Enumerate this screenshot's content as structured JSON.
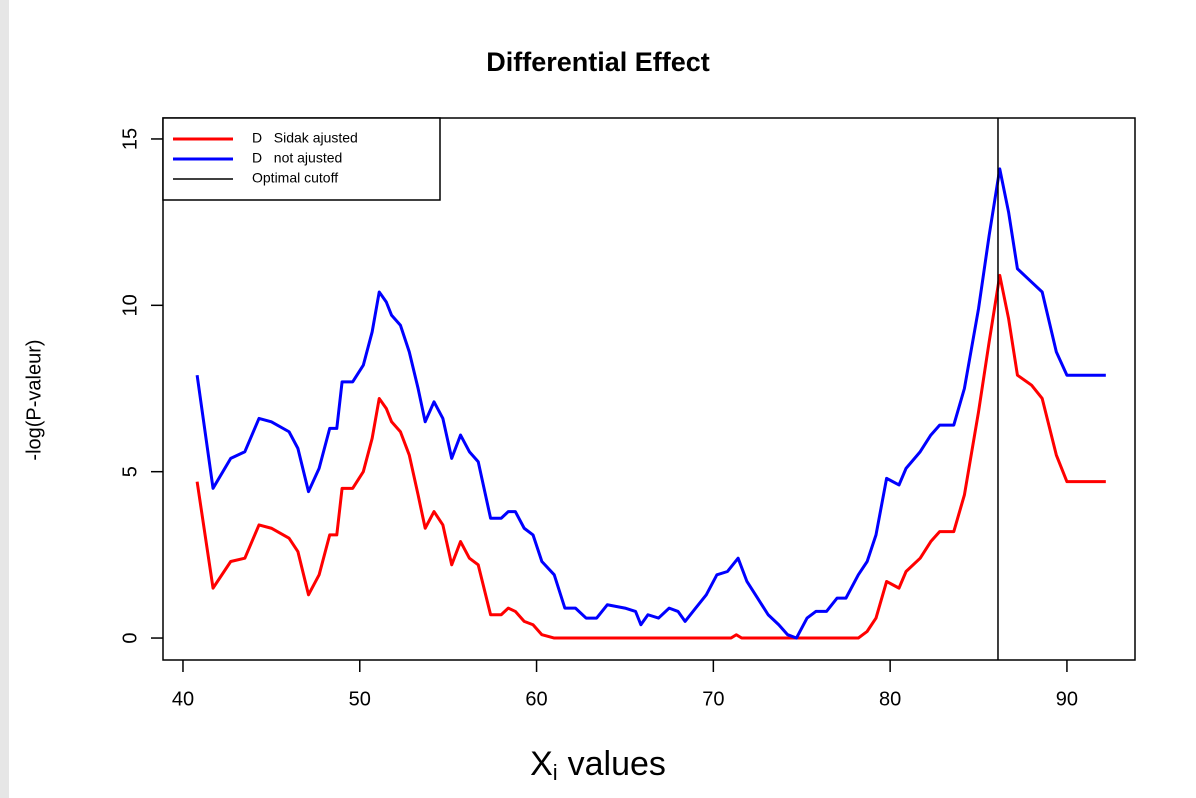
{
  "chart_data": {
    "type": "line",
    "title": "Differential Effect",
    "x_label": "X",
    "x_label_sub": "i",
    "x_label_rest": "values",
    "y_label": "-log(P-valeur)",
    "xlim": [
      38.87,
      93.85
    ],
    "ylim": [
      -0.66,
      15.63
    ],
    "xticks": [
      40,
      50,
      60,
      70,
      80,
      90
    ],
    "yticks": [
      0,
      5,
      10,
      15
    ],
    "cutoff": {
      "name": "Optimal cutoff",
      "color": "#000000",
      "value": 86.1
    },
    "legend": "top-left",
    "series": [
      {
        "name": "D   Sidak ajusted",
        "color": "#ff0000",
        "x": [
          40.8,
          41.7,
          42.7,
          43.5,
          44.3,
          45,
          46,
          46.5,
          47.1,
          47.7,
          48.3,
          48.7,
          49,
          49.6,
          50.2,
          50.7,
          51.1,
          51.5,
          51.8,
          52.3,
          52.8,
          53.3,
          53.7,
          54.2,
          54.7,
          55.2,
          55.7,
          56.2,
          56.7,
          57.4,
          58,
          58.4,
          58.8,
          59.3,
          59.8,
          60.3,
          61,
          71,
          71.3,
          71.6,
          78.2,
          78.7,
          79.2,
          79.8,
          80.5,
          80.9,
          81.7,
          82.3,
          82.8,
          83.6,
          84.2,
          85,
          85.6,
          86.2,
          86.7,
          87.2,
          88,
          88.6,
          89.4,
          90,
          91,
          92.2
        ],
        "values": [
          4.7,
          1.5,
          2.3,
          2.4,
          3.4,
          3.3,
          3.0,
          2.6,
          1.3,
          1.9,
          3.1,
          3.1,
          4.5,
          4.5,
          5.0,
          6.0,
          7.2,
          6.9,
          6.5,
          6.2,
          5.5,
          4.3,
          3.3,
          3.8,
          3.4,
          2.2,
          2.9,
          2.4,
          2.2,
          0.7,
          0.7,
          0.9,
          0.8,
          0.5,
          0.4,
          0.1,
          0,
          0,
          0.1,
          0,
          0,
          0.2,
          0.6,
          1.7,
          1.5,
          2.0,
          2.4,
          2.9,
          3.2,
          3.2,
          4.3,
          6.8,
          8.9,
          10.9,
          9.6,
          7.9,
          7.6,
          7.2,
          5.5,
          4.7,
          4.7,
          4.7
        ]
      },
      {
        "name": "D   not ajusted",
        "color": "#0000ff",
        "x": [
          40.8,
          41.7,
          42.7,
          43.5,
          44.3,
          45,
          46,
          46.5,
          47.1,
          47.7,
          48.3,
          48.7,
          49,
          49.6,
          50.2,
          50.7,
          51.1,
          51.5,
          51.8,
          52.3,
          52.8,
          53.3,
          53.7,
          54.2,
          54.7,
          55.2,
          55.7,
          56.2,
          56.7,
          57.4,
          58,
          58.4,
          58.8,
          59.3,
          59.8,
          60.3,
          61,
          61.6,
          62.2,
          62.8,
          63.4,
          64,
          65,
          65.6,
          65.9,
          66.3,
          66.9,
          67.5,
          68,
          68.4,
          69,
          69.6,
          70.2,
          70.8,
          71.4,
          71.9,
          72.5,
          73.1,
          73.7,
          74.2,
          74.7,
          75.3,
          75.8,
          76.4,
          77,
          77.5,
          78.2,
          78.7,
          79.2,
          79.8,
          80.5,
          80.9,
          81.7,
          82.3,
          82.8,
          83.6,
          84.2,
          85,
          85.6,
          86.2,
          86.7,
          87.2,
          88,
          88.6,
          89.4,
          90,
          91,
          92.2
        ],
        "values": [
          7.9,
          4.5,
          5.4,
          5.6,
          6.6,
          6.5,
          6.2,
          5.7,
          4.4,
          5.1,
          6.3,
          6.3,
          7.7,
          7.7,
          8.2,
          9.2,
          10.4,
          10.1,
          9.7,
          9.4,
          8.6,
          7.5,
          6.5,
          7.1,
          6.6,
          5.4,
          6.1,
          5.6,
          5.3,
          3.6,
          3.6,
          3.8,
          3.8,
          3.3,
          3.1,
          2.3,
          1.9,
          0.9,
          0.9,
          0.6,
          0.6,
          1.0,
          0.9,
          0.8,
          0.4,
          0.7,
          0.6,
          0.9,
          0.8,
          0.5,
          0.9,
          1.3,
          1.9,
          2.0,
          2.4,
          1.7,
          1.2,
          0.7,
          0.4,
          0.1,
          0.0,
          0.6,
          0.8,
          0.8,
          1.2,
          1.2,
          1.9,
          2.3,
          3.1,
          4.8,
          4.6,
          5.1,
          5.6,
          6.1,
          6.4,
          6.4,
          7.5,
          9.9,
          12.1,
          14.1,
          12.8,
          11.1,
          10.7,
          10.4,
          8.6,
          7.9,
          7.9,
          7.9
        ]
      }
    ]
  }
}
